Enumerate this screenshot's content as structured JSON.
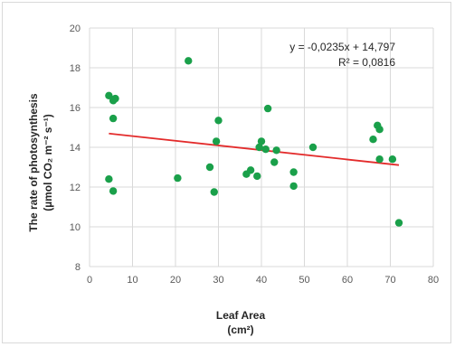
{
  "chart_data": {
    "type": "scatter",
    "xlabel_line1": "Leaf Area",
    "xlabel_line2": "(cm²)",
    "ylabel_line1": "The rate of photosynthesis",
    "ylabel_line2": "(µmol CO₂ m⁻² s⁻¹)",
    "xlim": [
      0,
      80
    ],
    "ylim": [
      8,
      20
    ],
    "xticks": [
      0,
      10,
      20,
      30,
      40,
      50,
      60,
      70,
      80
    ],
    "yticks": [
      8,
      10,
      12,
      14,
      16,
      18,
      20
    ],
    "xtick_labels": [
      "0",
      "10",
      "20",
      "30",
      "40",
      "50",
      "60",
      "70",
      "80"
    ],
    "ytick_labels": [
      "8",
      "10",
      "12",
      "14",
      "16",
      "18",
      "20"
    ],
    "grid": true,
    "legend": "none",
    "colors": {
      "points": "#1aa04a",
      "trendline": "#e32b2b",
      "grid": "#d9d9d9"
    },
    "points": [
      {
        "x": 4.5,
        "y": 16.6
      },
      {
        "x": 5.5,
        "y": 16.35
      },
      {
        "x": 6.0,
        "y": 16.45
      },
      {
        "x": 5.5,
        "y": 15.45
      },
      {
        "x": 4.5,
        "y": 12.4
      },
      {
        "x": 5.5,
        "y": 11.8
      },
      {
        "x": 20.5,
        "y": 12.45
      },
      {
        "x": 23.0,
        "y": 18.35
      },
      {
        "x": 28.0,
        "y": 13.0
      },
      {
        "x": 29.0,
        "y": 11.75
      },
      {
        "x": 29.5,
        "y": 14.3
      },
      {
        "x": 30.0,
        "y": 15.35
      },
      {
        "x": 36.5,
        "y": 12.65
      },
      {
        "x": 37.5,
        "y": 12.85
      },
      {
        "x": 39.0,
        "y": 12.55
      },
      {
        "x": 39.5,
        "y": 14.0
      },
      {
        "x": 40.0,
        "y": 14.3
      },
      {
        "x": 41.0,
        "y": 13.9
      },
      {
        "x": 41.5,
        "y": 15.95
      },
      {
        "x": 43.0,
        "y": 13.25
      },
      {
        "x": 43.5,
        "y": 13.85
      },
      {
        "x": 47.5,
        "y": 12.75
      },
      {
        "x": 47.5,
        "y": 12.05
      },
      {
        "x": 52.0,
        "y": 14.0
      },
      {
        "x": 66.0,
        "y": 14.4
      },
      {
        "x": 67.0,
        "y": 15.1
      },
      {
        "x": 67.5,
        "y": 14.9
      },
      {
        "x": 67.5,
        "y": 13.4
      },
      {
        "x": 70.5,
        "y": 13.4
      },
      {
        "x": 72.0,
        "y": 10.2
      }
    ],
    "trendline": {
      "slope": -0.0235,
      "intercept": 14.797,
      "x_range": [
        4.5,
        72.0
      ],
      "equation_label": "y = -0,0235x + 14,797",
      "r2_label": "R² = 0,0816"
    }
  }
}
